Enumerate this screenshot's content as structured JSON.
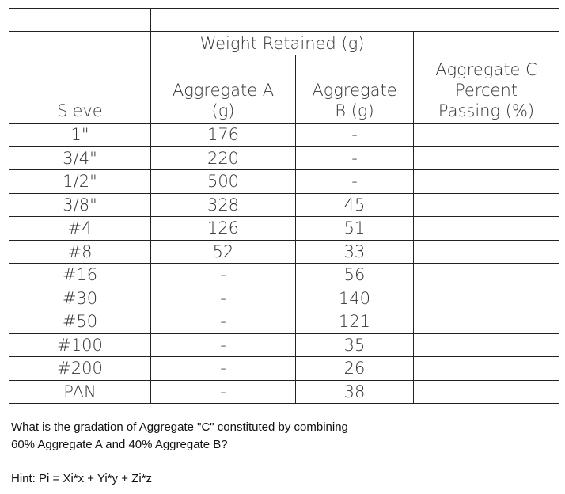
{
  "table": {
    "header_group": "Weight Retained (g)",
    "columns": {
      "sieve": "Sieve",
      "agg_a": "Aggregate  A\n(g)",
      "agg_b": "Aggregate\nB (g)",
      "agg_c": "Aggregate C\nPercent\nPassing (%)"
    },
    "rows": [
      {
        "sieve": "1\"",
        "a": "176",
        "b": "-",
        "c": ""
      },
      {
        "sieve": "3/4\"",
        "a": "220",
        "b": "-",
        "c": ""
      },
      {
        "sieve": "1/2\"",
        "a": "500",
        "b": "-",
        "c": ""
      },
      {
        "sieve": "3/8\"",
        "a": "328",
        "b": "45",
        "c": ""
      },
      {
        "sieve": "#4",
        "a": "126",
        "b": "51",
        "c": ""
      },
      {
        "sieve": "#8",
        "a": "52",
        "b": "33",
        "c": ""
      },
      {
        "sieve": "#16",
        "a": "-",
        "b": "56",
        "c": ""
      },
      {
        "sieve": "#30",
        "a": "-",
        "b": "140",
        "c": ""
      },
      {
        "sieve": "#50",
        "a": "-",
        "b": "121",
        "c": ""
      },
      {
        "sieve": "#100",
        "a": "-",
        "b": "35",
        "c": ""
      },
      {
        "sieve": "#200",
        "a": "-",
        "b": "26",
        "c": ""
      },
      {
        "sieve": "PAN",
        "a": "-",
        "b": "38",
        "c": ""
      }
    ]
  },
  "question": {
    "line1": "What is the gradation of Aggregate \"C\" constituted by combining",
    "line2": "60% Aggregate A and 40% Aggregate B?"
  },
  "hint": "Hint: Pi = Xi*x + Yi*y + Zi*z"
}
